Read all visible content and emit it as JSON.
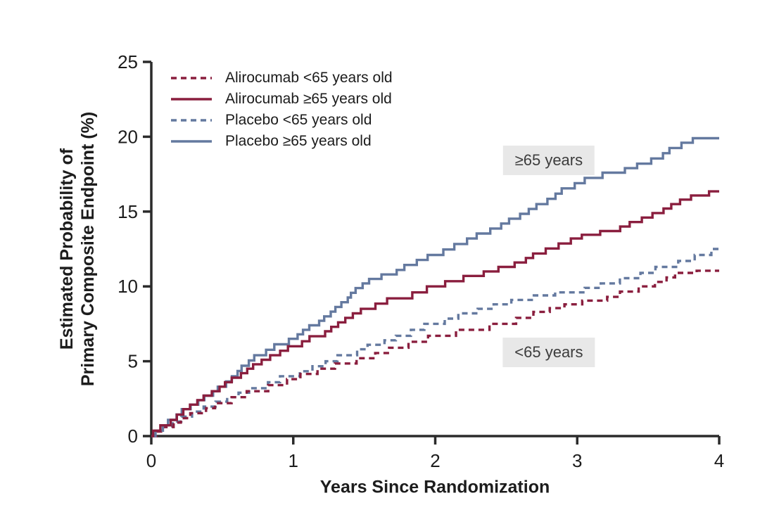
{
  "colors": {
    "background": "#FFFFFF",
    "axis": "#2B2B2B",
    "text": "#1C1C1C",
    "annotation_background": "#E8E8E8",
    "alirocumab_red": "#8A1E3E",
    "placebo_blue": "#64799F"
  },
  "chart_data": {
    "type": "line",
    "subtype": "kaplan-meier-cumulative-incidence-steps",
    "title": "",
    "xlabel": "Years Since Randomization",
    "ylabel_lines": [
      "Estimated Probability of",
      "Primary Composite Endpoint (%)"
    ],
    "xlim": [
      0,
      4
    ],
    "ylim": [
      0,
      25
    ],
    "xticks": [
      0,
      1,
      2,
      3,
      4
    ],
    "yticks": [
      0,
      5,
      10,
      15,
      20,
      25
    ],
    "grid": false,
    "legend_position": "top-left-inside",
    "x_years": [
      0,
      0.25,
      0.5,
      0.75,
      1,
      1.25,
      1.5,
      1.75,
      2,
      2.25,
      2.5,
      2.75,
      3,
      3.25,
      3.5,
      3.75,
      4
    ],
    "series": [
      {
        "name": "Alirocumab <65 years old",
        "color": "#8A1E3E",
        "line_style": "dashed",
        "values": [
          0,
          1.2,
          2.2,
          3.0,
          3.8,
          4.5,
          5.2,
          5.9,
          6.7,
          7.1,
          7.5,
          8.3,
          8.8,
          9.3,
          10.0,
          10.9,
          11.05
        ]
      },
      {
        "name": "Alirocumab ≥65 years old",
        "color": "#8A1E3E",
        "line_style": "solid",
        "values": [
          0,
          1.8,
          3.3,
          4.8,
          6.0,
          7.0,
          8.5,
          9.2,
          10.0,
          10.7,
          11.3,
          12.2,
          13.2,
          13.7,
          14.6,
          15.8,
          16.35
        ]
      },
      {
        "name": "Placebo <65 years old",
        "color": "#64799F",
        "line_style": "dashed",
        "values": [
          0,
          1.3,
          2.3,
          3.2,
          4.0,
          5.0,
          5.8,
          6.7,
          7.5,
          8.2,
          8.8,
          9.4,
          9.6,
          10.2,
          10.9,
          11.7,
          12.5
        ]
      },
      {
        "name": "Placebo ≥65 years old",
        "color": "#64799F",
        "line_style": "solid",
        "values": [
          0,
          1.8,
          3.3,
          5.4,
          6.5,
          8.0,
          10.2,
          11.1,
          12.1,
          13.2,
          14.2,
          15.5,
          16.9,
          17.6,
          18.2,
          19.6,
          19.9
        ]
      }
    ],
    "annotations": [
      {
        "text": "≥65 years",
        "x": 2.8,
        "y": 18.4
      },
      {
        "text": "<65 years",
        "x": 2.8,
        "y": 5.6
      }
    ]
  }
}
